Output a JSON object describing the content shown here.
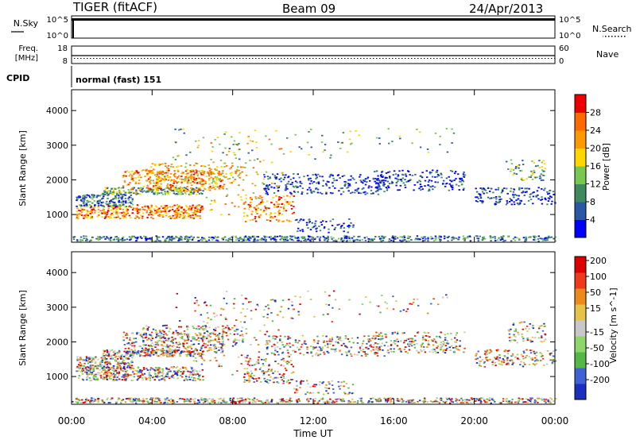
{
  "header": {
    "station": "TIGER (fitACF)",
    "beam": "Beam 09",
    "date": "24/Apr/2013"
  },
  "top_panels": {
    "nsky_label": "N.Sky",
    "nsky_ticks": [
      "10^5",
      "10^0"
    ],
    "nsearch_label": "N.Search",
    "nsearch_ticks": [
      "10^5",
      "10^0"
    ],
    "freq_label": "Freq.",
    "freq_unit": "[MHz]",
    "freq_ticks": [
      "18",
      "8"
    ],
    "nave_label": "Nave",
    "nave_ticks": [
      "60",
      "0"
    ],
    "cpid_label": "CPID",
    "cpid_value": "normal (fast) 151"
  },
  "chart_data": [
    {
      "type": "heatmap",
      "name": "power-panel",
      "ylabel": "Slant Range [km]",
      "ylim": [
        200,
        4600
      ],
      "yticks": [
        1000,
        2000,
        3000,
        4000
      ],
      "xlim": [
        0,
        24
      ],
      "colorbar_label": "Power [dB]",
      "colorbar_ticks": [
        "4",
        "8",
        "12",
        "16",
        "20",
        "24",
        "28"
      ],
      "colors": [
        "#0000ff",
        "#2a57a8",
        "#3f8a5c",
        "#78c850",
        "#ffd700",
        "#ff9900",
        "#ff6a00",
        "#ee0000"
      ]
    },
    {
      "type": "heatmap",
      "name": "velocity-panel",
      "ylabel": "Slant Range [km]",
      "ylim": [
        200,
        4600
      ],
      "yticks": [
        1000,
        2000,
        3000,
        4000
      ],
      "xlim": [
        0,
        24
      ],
      "xticks": [
        "00:00",
        "04:00",
        "08:00",
        "12:00",
        "16:00",
        "20:00",
        "00:00"
      ],
      "xlabel": "Time UT",
      "colorbar_label": "Velocity [m s^-1]",
      "colorbar_ticks": [
        "200",
        "100",
        "50",
        "15",
        "-15",
        "-50",
        "-100",
        "-200"
      ],
      "colors": [
        "#1a2fbf",
        "#3e61d6",
        "#55b846",
        "#8cd66a",
        "#c8c8c8",
        "#e6c24a",
        "#ee8a1c",
        "#ee3a1a",
        "#dd0000"
      ]
    }
  ]
}
